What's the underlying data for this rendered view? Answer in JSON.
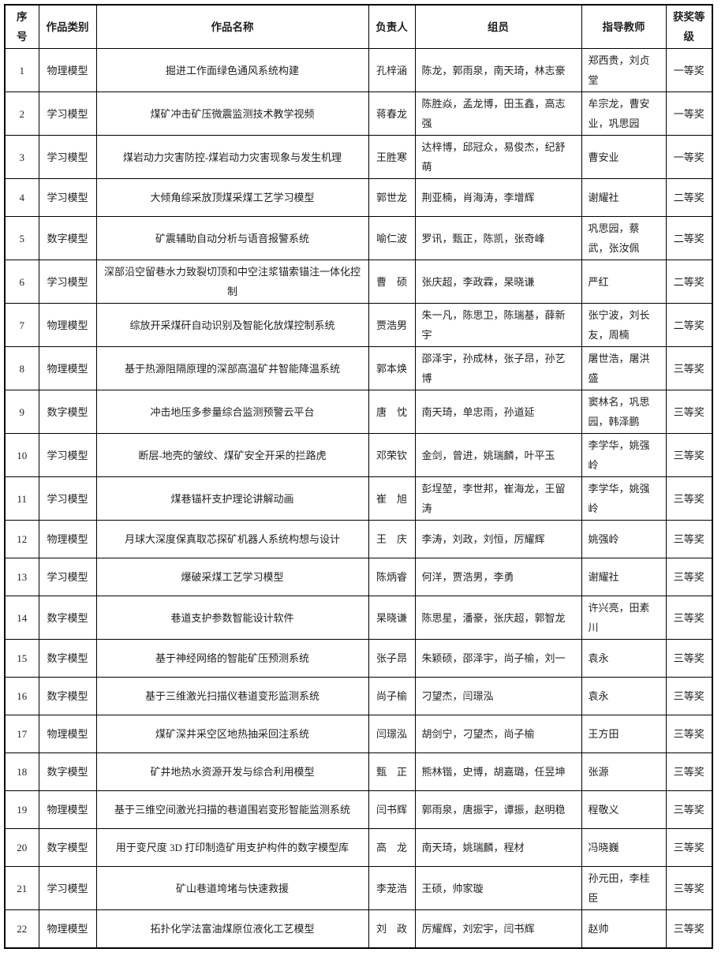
{
  "table": {
    "columns": [
      "no",
      "category",
      "title",
      "leader",
      "members",
      "teachers",
      "award"
    ],
    "headers": [
      "序号",
      "作品类别",
      "作品名称",
      "负责人",
      "组员",
      "指导教师",
      "获奖等级"
    ],
    "rows": [
      {
        "no": "1",
        "category": "物理模型",
        "title": "掘进工作面绿色通风系统构建",
        "leader": "孔梓涵",
        "members": "陈龙，郭雨泉，南天琦，林志豪",
        "teachers": "郑西贵，刘贞堂",
        "award": "一等奖"
      },
      {
        "no": "2",
        "category": "学习模型",
        "title": "煤矿冲击矿压微震监测技术教学视频",
        "leader": "蒋春龙",
        "members": "陈胜焱，孟龙博，田玉鑫，高志强",
        "teachers": "牟宗龙，曹安业，巩思园",
        "award": "一等奖"
      },
      {
        "no": "3",
        "category": "学习模型",
        "title": "煤岩动力灾害防控-煤岩动力灾害现象与发生机理",
        "leader": "王胜寒",
        "members": "达梓博，邱冠众，易俊杰，纪舒萌",
        "teachers": "曹安业",
        "award": "一等奖"
      },
      {
        "no": "4",
        "category": "学习模型",
        "title": "大倾角综采放顶煤采煤工艺学习模型",
        "leader": "郭世龙",
        "members": "荆亚楠，肖海涛，李增辉",
        "teachers": "谢耀社",
        "award": "二等奖"
      },
      {
        "no": "5",
        "category": "数字模型",
        "title": "矿震辅助自动分析与语音报警系统",
        "leader": "喻仁波",
        "members": "罗讯，甄正，陈凯，张奇峰",
        "teachers": "巩思园，蔡武，张汝佩",
        "award": "二等奖"
      },
      {
        "no": "6",
        "category": "学习模型",
        "title": "深部沿空留巷水力致裂切顶和中空注浆锚索锚注一体化控制",
        "leader": "曹　硕",
        "members": "张庆超，李政霖，杲晓谦",
        "teachers": "严红",
        "award": "二等奖"
      },
      {
        "no": "7",
        "category": "物理模型",
        "title": "综放开采煤矸自动识别及智能化放煤控制系统",
        "leader": "贾浩男",
        "members": "朱一凡，陈思卫，陈瑞基，薛新宇",
        "teachers": "张宁波，刘长友，周楠",
        "award": "二等奖"
      },
      {
        "no": "8",
        "category": "物理模型",
        "title": "基于热源阻隔原理的深部高温矿井智能降温系统",
        "leader": "郭本焕",
        "members": "邵泽宇，孙成林，张子昂，孙艺博",
        "teachers": "屠世浩，屠洪盛",
        "award": "三等奖"
      },
      {
        "no": "9",
        "category": "数字模型",
        "title": "冲击地压多参量综合监测预警云平台",
        "leader": "唐　忱",
        "members": "南天琦，单忠雨，孙道延",
        "teachers": "窦林名，巩思园，韩泽鹏",
        "award": "三等奖"
      },
      {
        "no": "10",
        "category": "学习模型",
        "title": "断层-地壳的皱纹、煤矿安全开采的拦路虎",
        "leader": "邓荣钦",
        "members": "金剑，曾进，姚瑞麟，叶平玉",
        "teachers": "李学华，姚强岭",
        "award": "三等奖"
      },
      {
        "no": "11",
        "category": "学习模型",
        "title": "煤巷锚杆支护理论讲解动画",
        "leader": "崔　旭",
        "members": "彭埕堃，李世邦，崔海龙，王留涛",
        "teachers": "李学华，姚强岭",
        "award": "三等奖"
      },
      {
        "no": "12",
        "category": "物理模型",
        "title": "月球大深度保真取芯探矿机器人系统构想与设计",
        "leader": "王　庆",
        "members": "李涛，刘政，刘恒，厉耀辉",
        "teachers": "姚强岭",
        "award": "三等奖"
      },
      {
        "no": "13",
        "category": "学习模型",
        "title": "爆破采煤工艺学习模型",
        "leader": "陈炳睿",
        "members": "何洋，贾浩男，李勇",
        "teachers": "谢耀社",
        "award": "三等奖"
      },
      {
        "no": "14",
        "category": "数字模型",
        "title": "巷道支护参数智能设计软件",
        "leader": "杲晓谦",
        "members": "陈思星，潘豪，张庆超，郭智龙",
        "teachers": "许兴亮，田素川",
        "award": "三等奖"
      },
      {
        "no": "15",
        "category": "数字模型",
        "title": "基于神经网络的智能矿压预测系统",
        "leader": "张子昂",
        "members": "朱颖硕，邵泽宇，尚子榆，刘一",
        "teachers": "袁永",
        "award": "三等奖"
      },
      {
        "no": "16",
        "category": "数字模型",
        "title": "基于三维激光扫描仪巷道变形监测系统",
        "leader": "尚子榆",
        "members": "刁望杰，闫璟泓",
        "teachers": "袁永",
        "award": "三等奖"
      },
      {
        "no": "17",
        "category": "物理模型",
        "title": "煤矿深井采空区地热抽采回注系统",
        "leader": "闫璟泓",
        "members": "胡剑宁，刁望杰，尚子榆",
        "teachers": "王方田",
        "award": "三等奖"
      },
      {
        "no": "18",
        "category": "数字模型",
        "title": "矿井地热水资源开发与综合利用模型",
        "leader": "甄　正",
        "members": "熊林锴，史博，胡嘉璐，任昱坤",
        "teachers": "张源",
        "award": "三等奖"
      },
      {
        "no": "19",
        "category": "物理模型",
        "title": "基于三维空间激光扫描的巷道围岩变形智能监测系统",
        "leader": "闫书辉",
        "members": "郭雨泉，唐振宇，谭振，赵明稳",
        "teachers": "程敬义",
        "award": "三等奖"
      },
      {
        "no": "20",
        "category": "数字模型",
        "title": "用于变尺度 3D 打印制造矿用支护构件的数字模型库",
        "leader": "高　龙",
        "members": "南天琦，姚瑞麟，程材",
        "teachers": "冯晓巍",
        "award": "三等奖"
      },
      {
        "no": "21",
        "category": "学习模型",
        "title": "矿山巷道垮堵与快速救援",
        "leader": "李茏浩",
        "members": "王硕，帅家璇",
        "teachers": "孙元田，李桂臣",
        "award": "三等奖"
      },
      {
        "no": "22",
        "category": "物理模型",
        "title": "拓扑化学法富油煤原位液化工艺模型",
        "leader": "刘　政",
        "members": "厉耀辉，刘宏宇，闫书辉",
        "teachers": "赵帅",
        "award": "三等奖"
      }
    ]
  }
}
